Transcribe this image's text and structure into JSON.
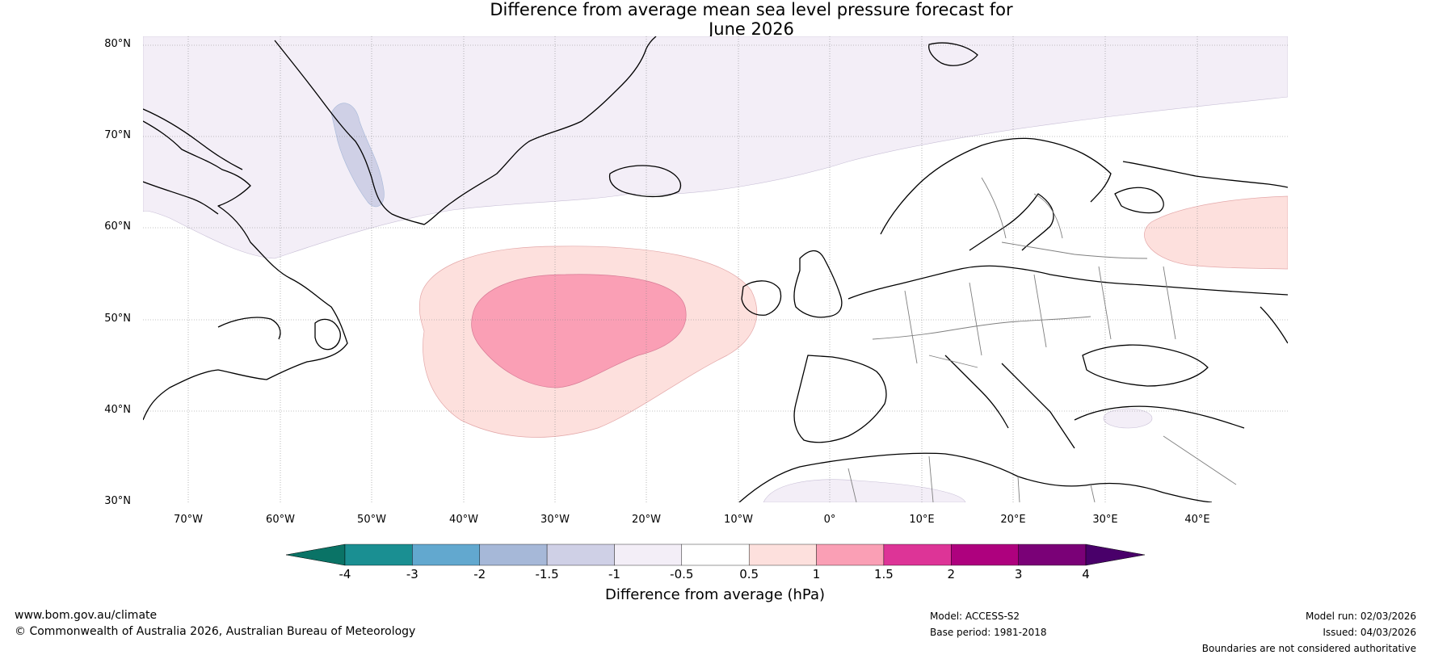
{
  "title": {
    "line1": "Difference from average mean sea level pressure forecast for",
    "line2": "June 2026"
  },
  "map": {
    "latitude_labels": [
      "80°N",
      "70°N",
      "60°N",
      "50°N",
      "40°N",
      "30°N"
    ],
    "longitude_labels": [
      "70°W",
      "60°W",
      "50°W",
      "40°W",
      "30°W",
      "20°W",
      "10°W",
      "0°",
      "10°E",
      "20°E",
      "30°E",
      "40°E"
    ],
    "extent": {
      "lon_min": -75,
      "lon_max": 50,
      "lat_min": 30,
      "lat_max": 81
    },
    "anomalies": [
      {
        "name": "north-atlantic-high-outer",
        "range": "0.5 to 1",
        "center_lon": -26,
        "center_lat": 48
      },
      {
        "name": "north-atlantic-high-inner",
        "range": "1 to 1.5",
        "center_lon": -28,
        "center_lat": 49
      },
      {
        "name": "russia-high",
        "range": "0.5 to 1",
        "center_lon": 42,
        "center_lat": 61
      },
      {
        "name": "arctic-low",
        "range": "-1 to -0.5",
        "center_lon": -30,
        "center_lat": 74
      },
      {
        "name": "greenland-low",
        "range": "-1.5 to -1",
        "center_lon": -49,
        "center_lat": 69
      },
      {
        "name": "turkey-low",
        "range": "-1 to -0.5",
        "center_lon": 32,
        "center_lat": 39
      },
      {
        "name": "north-africa-low",
        "range": "-1 to -0.5",
        "center_lon": 0,
        "center_lat": 31
      }
    ]
  },
  "colorbar": {
    "ticks": [
      "-4",
      "-3",
      "-2",
      "-1.5",
      "-1",
      "-0.5",
      "0.5",
      "1",
      "1.5",
      "2",
      "3",
      "4"
    ],
    "colors": [
      "#1a8f92",
      "#62a8cf",
      "#a6b8d8",
      "#cfd0e6",
      "#f3eef7",
      "#ffffff",
      "#fde0dd",
      "#fa9fb5",
      "#dd3497",
      "#ae017e",
      "#7a0177"
    ],
    "low_extend_color": "#0a7366",
    "high_extend_color": "#49006a",
    "label": "Difference from average (hPa)"
  },
  "footer": {
    "website": "www.bom.gov.au/climate",
    "copyright": "© Commonwealth of Australia 2026, Australian Bureau of Meteorology",
    "model": "Model: ACCESS-S2",
    "base_period": "Base period: 1981-2018",
    "model_run": "Model run: 02/03/2026",
    "issued": "Issued: 04/03/2026",
    "disclaimer": "Boundaries are not considered authoritative"
  }
}
